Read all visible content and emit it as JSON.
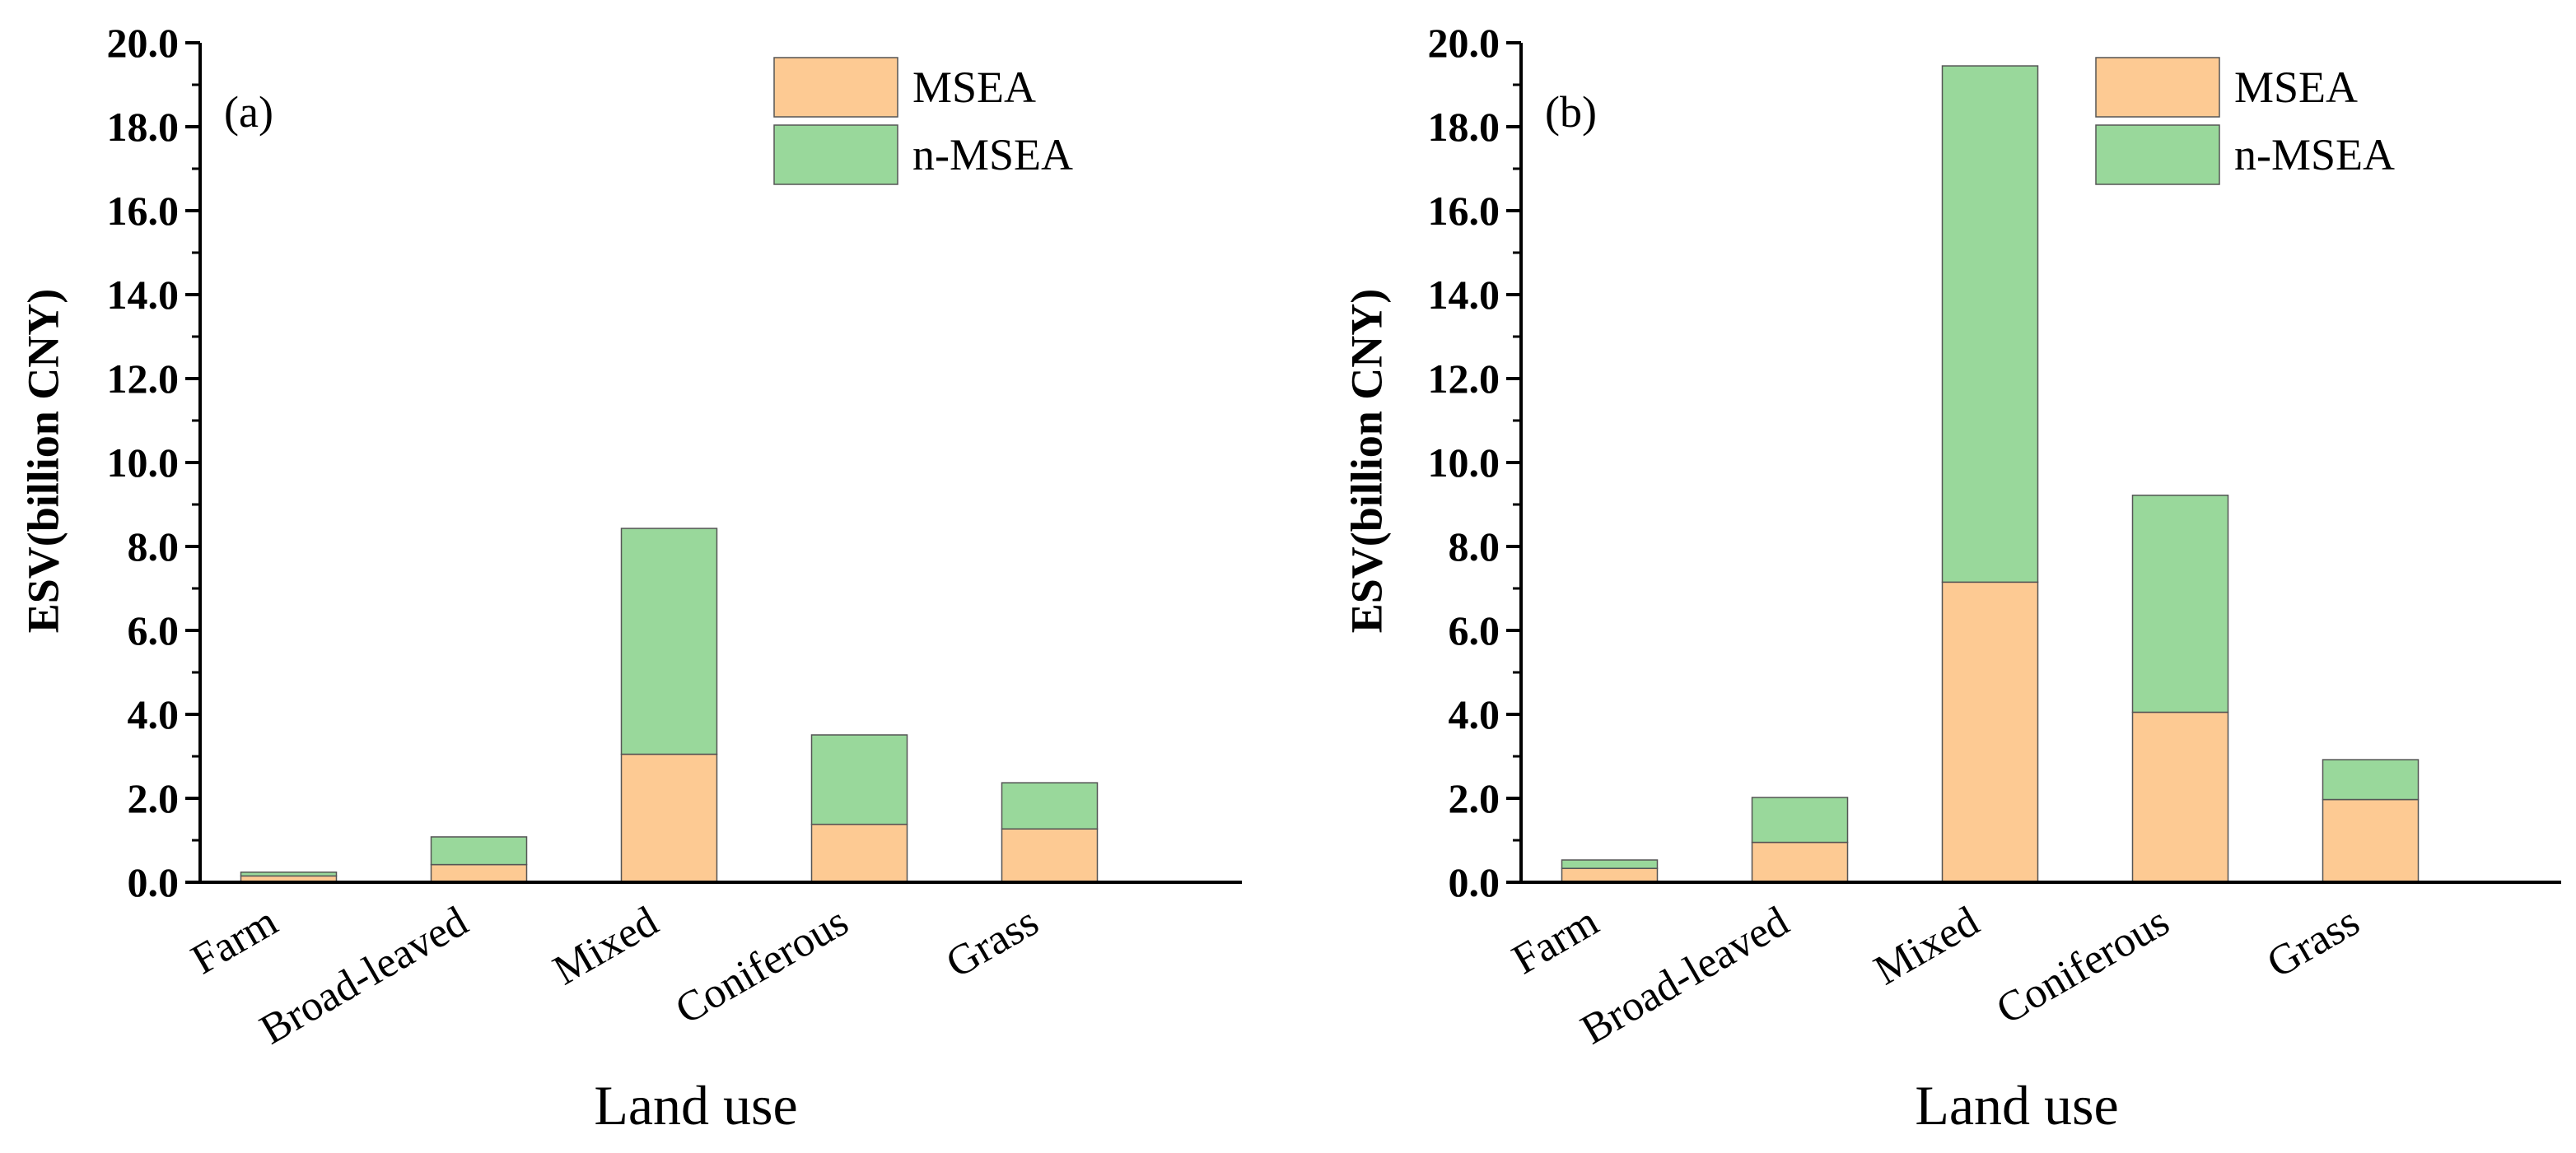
{
  "colors": {
    "MSEA": "#FDCA93",
    "n-MSEA": "#99D89B",
    "axis": "#000000"
  },
  "chart_data": [
    {
      "type": "bar",
      "stacked": true,
      "panel_label": "(a)",
      "categories": [
        "Farm",
        "Broad-leaved",
        "Mixed",
        "Coniferous",
        "Grass"
      ],
      "series": [
        {
          "name": "MSEA",
          "values": [
            0.15,
            0.42,
            3.05,
            1.38,
            1.27
          ]
        },
        {
          "name": "n-MSEA",
          "values": [
            0.09,
            0.66,
            5.38,
            2.13,
            1.1
          ]
        }
      ],
      "xlabel": "Land use",
      "ylabel": "ESV(billion CNY)",
      "ylim": [
        0,
        20
      ],
      "yticks": [
        "0.0",
        "2.0",
        "4.0",
        "6.0",
        "8.0",
        "10.0",
        "12.0",
        "14.0",
        "16.0",
        "18.0",
        "20.0"
      ],
      "grid": false,
      "legend": "top-right"
    },
    {
      "type": "bar",
      "stacked": true,
      "panel_label": "(b)",
      "categories": [
        "Farm",
        "Broad-leaved",
        "Mixed",
        "Coniferous",
        "Grass"
      ],
      "series": [
        {
          "name": "MSEA",
          "values": [
            0.33,
            0.95,
            7.15,
            4.05,
            1.97
          ]
        },
        {
          "name": "n-MSEA",
          "values": [
            0.2,
            1.07,
            12.3,
            5.17,
            0.95
          ]
        }
      ],
      "xlabel": "Land use",
      "ylabel": "ESV(billion CNY)",
      "ylim": [
        0,
        20
      ],
      "yticks": [
        "0.0",
        "2.0",
        "4.0",
        "6.0",
        "8.0",
        "10.0",
        "12.0",
        "14.0",
        "16.0",
        "18.0",
        "20.0"
      ],
      "grid": false,
      "legend": "top-right"
    }
  ]
}
